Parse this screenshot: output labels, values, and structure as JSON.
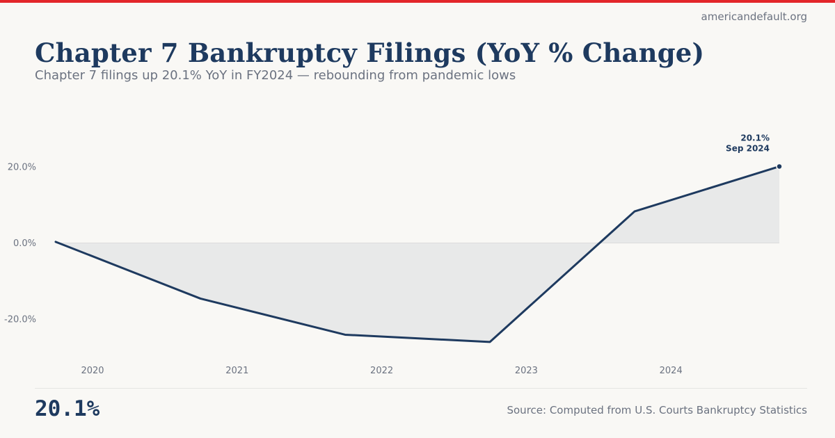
{
  "site": "americandefault.org",
  "title": "Chapter 7 Bankruptcy Filings (YoY % Change)",
  "subtitle": "Chapter 7 filings up 20.1% YoY in FY2024 — rebounding from pandemic lows",
  "headline_value": "20.1%",
  "source": "Source: Computed from U.S. Courts Bankruptcy Statistics",
  "colors": {
    "accent_bar": "#e3262a",
    "line": "#1e3a5f",
    "area": "#e8e9e9"
  },
  "chart_data": {
    "type": "area",
    "x": [
      "Sep 2019",
      "Sep 2020",
      "Sep 2021",
      "Sep 2022",
      "Sep 2023",
      "Sep 2024"
    ],
    "series": [
      {
        "values": [
          0.3,
          -14.6,
          -24.1,
          -26.0,
          8.3,
          20.1
        ]
      }
    ],
    "x_tick_labels": [
      "2020",
      "2021",
      "2022",
      "2023",
      "2024"
    ],
    "y_ticks": [
      20.0,
      0.0,
      -20.0
    ],
    "y_tick_labels": [
      "20.0%",
      "0.0%",
      "-20.0%"
    ],
    "ylim": [
      -31,
      34
    ],
    "grid": false,
    "annotation": {
      "value_label": "20.1%",
      "date_label": "Sep 2024"
    }
  }
}
